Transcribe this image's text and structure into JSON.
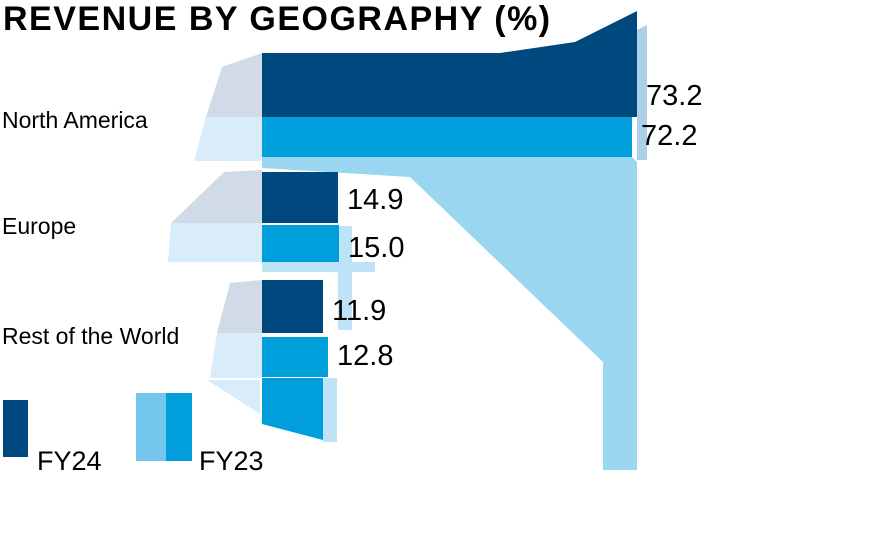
{
  "title": "REVENUE BY GEOGRAPHY (%)",
  "chart_data": {
    "type": "bar",
    "orientation": "horizontal",
    "title": "REVENUE BY GEOGRAPHY (%)",
    "unit": "percent",
    "categories": [
      "North America",
      "Europe",
      "Rest of the World"
    ],
    "series": [
      {
        "name": "FY24",
        "color": "#00497E",
        "values": [
          73.2,
          14.9,
          11.9
        ]
      },
      {
        "name": "FY23",
        "color": "#009EDB",
        "values": [
          72.2,
          15.0,
          12.8
        ]
      }
    ],
    "value_labels": [
      [
        "73.2",
        "72.2"
      ],
      [
        "14.9",
        "15.0"
      ],
      [
        "11.9",
        "12.8"
      ]
    ],
    "xlim": [
      0,
      78
    ],
    "grid": false,
    "axis_ticks": "none",
    "legend_position": "bottom-left",
    "legend": [
      "FY24",
      "FY23"
    ]
  },
  "legend": {
    "fy24_label": "FY24",
    "fy23_label": "FY23"
  },
  "colors": {
    "fy24": "#00497E",
    "fy23": "#009EDB",
    "text": "#000000",
    "background": "#FFFFFF",
    "artifact_light_blue": "#9AD6F0",
    "artifact_gray_blue": "#D0DBE7",
    "artifact_pale_blue": "#D8ECF9",
    "artifact_strip_blue": "#BEE3F6",
    "artifact_right_strip": "#ABD0EA",
    "legend_fy23_light": "#74C6EC"
  }
}
